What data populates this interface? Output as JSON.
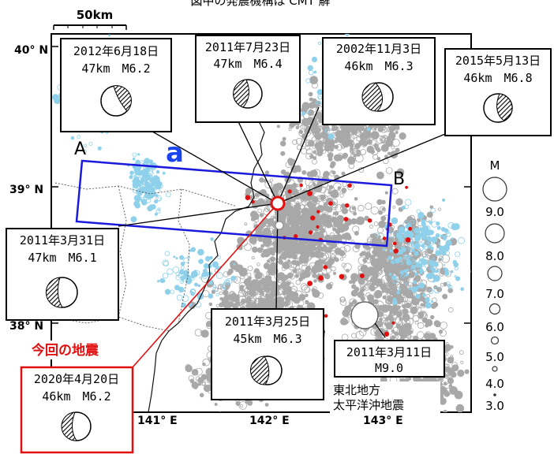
{
  "title": "図中の発震機構は CMT 解",
  "scale_bar": {
    "label": "50km"
  },
  "lat_labels": [
    "40° N",
    "39° N",
    "38° N"
  ],
  "lon_labels": [
    "141° E",
    "142° E",
    "143° E"
  ],
  "section": {
    "a": "a",
    "A": "A",
    "B": "B"
  },
  "current_event_label": "今回の地震",
  "legend": {
    "title": "M",
    "magnitudes": [
      "9.0",
      "8.0",
      "7.0",
      "6.0",
      "5.0",
      "4.0",
      "3.0"
    ]
  },
  "events": [
    {
      "id": "e2012",
      "date": "2012年6月18日",
      "info": "47km　M6.2"
    },
    {
      "id": "e2011jul",
      "date": "2011年7月23日",
      "info": "47km　M6.4"
    },
    {
      "id": "e2002",
      "date": "2002年11月3日",
      "info": "46km　M6.3"
    },
    {
      "id": "e2015",
      "date": "2015年5月13日",
      "info": "46km　M6.8"
    },
    {
      "id": "e2011mar31",
      "date": "2011年3月31日",
      "info": "47km　M6.1"
    },
    {
      "id": "e2011mar25",
      "date": "2011年3月25日",
      "info": "45km　M6.3"
    },
    {
      "id": "e2020",
      "date": "2020年4月20日",
      "info": "46km　M6.2"
    }
  ],
  "tohoku": {
    "date": "2011年3月11日",
    "info": "M9.0",
    "name_line1": "東北地方",
    "name_line2": "太平洋沖地震"
  },
  "colors": {
    "section_box": "#1a1adc",
    "current": "#e01010",
    "cyan": "#8fd0ea",
    "gray": "#a8a8a8",
    "label_a": "#1a44ee",
    "red_dots": "#e01010"
  }
}
